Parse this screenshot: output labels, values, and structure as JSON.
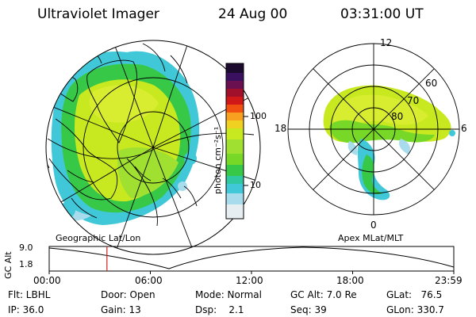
{
  "header": {
    "instrument": "Ultraviolet Imager",
    "date": "24 Aug 00",
    "time": "03:31:00 UT"
  },
  "colorbar": {
    "unit_label": "photon cm⁻²s⁻¹",
    "tick_labels": [
      "100",
      "10"
    ],
    "colors": [
      "#1b0a2e",
      "#3a1060",
      "#6a1050",
      "#a0102a",
      "#d01818",
      "#f05010",
      "#f8a020",
      "#f0d020",
      "#c8e820",
      "#78d828",
      "#38c848",
      "#30c8a0",
      "#40c8d8",
      "#a8dcec",
      "#e6eef2"
    ]
  },
  "maps": {
    "geographic_label": "Geographic Lat/Lon",
    "apex_label": "Apex MLat/MLT",
    "mlt_labels": {
      "top": "12",
      "bottom": "0",
      "left": "18",
      "right": "6"
    },
    "lat_labels": [
      "60",
      "70",
      "80"
    ]
  },
  "altitude_plot": {
    "ylabel": "GC Alt",
    "yticks": [
      "9.0",
      "1.8"
    ],
    "xticks": [
      "00:00",
      "06:00",
      "12:00",
      "18:00",
      "23:59"
    ],
    "marker_time_hours": 3.52
  },
  "status": {
    "filter": "Flt: LBHL",
    "ip": "IP: 36.0",
    "door": "Door: Open",
    "gain": "Gain: 13",
    "mode": "Mode: Normal",
    "dsp": "Dsp:    2.1",
    "gc_alt": "GC Alt: 7.0 Re",
    "seq": "Seq: 39",
    "glat": "GLat:   76.5",
    "glon": "GLon: 330.7"
  }
}
